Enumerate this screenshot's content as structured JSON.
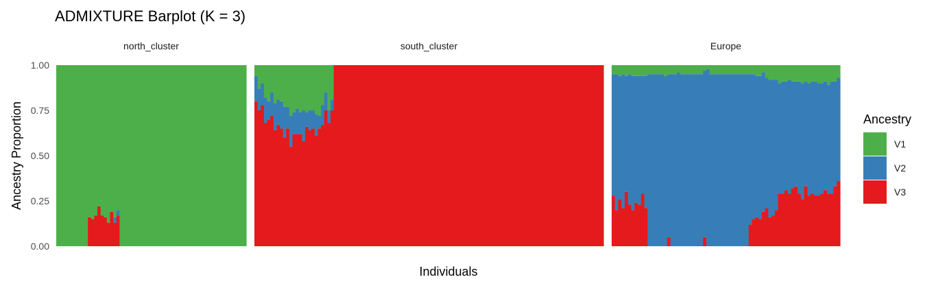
{
  "chart_data": {
    "type": "bar",
    "stacked": true,
    "title": "ADMIXTURE Barplot (K = 3)",
    "xlabel": "Individuals",
    "ylabel": "Ancestry Proportion",
    "ylim": [
      0,
      1
    ],
    "y_ticks": [
      "0.00",
      "0.25",
      "0.50",
      "0.75",
      "1.00"
    ],
    "legend": {
      "title": "Ancestry",
      "position": "right",
      "items": [
        {
          "name": "V1",
          "color": "#4DAF4A"
        },
        {
          "name": "V2",
          "color": "#377EB8"
        },
        {
          "name": "V3",
          "color": "#E41A1C"
        }
      ]
    },
    "series_order_top_to_bottom": [
      "V1",
      "V2",
      "V3"
    ],
    "facets": [
      {
        "name": "north_cluster",
        "individuals": 60,
        "V3": [
          0,
          0,
          0,
          0,
          0,
          0,
          0,
          0,
          0,
          0,
          0.16,
          0.15,
          0.17,
          0.22,
          0.17,
          0.16,
          0.13,
          0.19,
          0.13,
          0.17,
          0,
          0,
          0,
          0,
          0,
          0,
          0,
          0,
          0,
          0,
          0,
          0,
          0,
          0,
          0,
          0,
          0,
          0,
          0,
          0,
          0,
          0,
          0,
          0,
          0,
          0,
          0,
          0,
          0,
          0,
          0,
          0,
          0,
          0,
          0,
          0,
          0,
          0,
          0,
          0
        ],
        "V2": [
          0,
          0,
          0,
          0,
          0,
          0,
          0,
          0,
          0,
          0,
          0,
          0,
          0,
          0,
          0,
          0,
          0,
          0,
          0.03,
          0.03,
          0,
          0,
          0,
          0,
          0,
          0,
          0,
          0,
          0,
          0,
          0,
          0,
          0,
          0,
          0,
          0,
          0,
          0,
          0,
          0,
          0,
          0,
          0,
          0,
          0,
          0,
          0,
          0,
          0,
          0,
          0,
          0,
          0,
          0,
          0,
          0,
          0,
          0
        ]
      },
      {
        "name": "south_cluster",
        "individuals": 110,
        "V3": [
          0.8,
          0.75,
          0.78,
          0.68,
          0.7,
          0.72,
          0.64,
          0.67,
          0.65,
          0.6,
          0.65,
          0.55,
          0.62,
          0.62,
          0.62,
          0.58,
          0.66,
          0.64,
          0.65,
          0.61,
          0.65,
          0.67,
          0.75,
          0.68,
          0.75,
          1,
          1,
          1,
          1,
          1,
          1,
          1,
          1,
          1,
          1,
          1,
          1,
          1,
          1,
          1,
          1,
          1,
          1,
          1,
          1,
          1,
          1,
          1,
          1,
          1,
          1,
          1,
          1,
          1,
          1,
          1,
          1,
          1,
          1,
          1,
          1,
          1,
          1,
          1,
          1,
          1,
          1,
          1,
          1,
          1,
          1,
          1,
          1,
          1,
          1,
          1,
          1,
          1,
          1,
          1,
          1,
          1,
          1,
          1,
          1,
          1,
          1,
          1,
          1,
          1,
          1,
          1,
          1,
          1,
          1,
          1,
          1,
          1,
          1,
          1,
          1,
          1,
          1,
          1,
          1,
          1,
          1,
          1,
          1,
          1
        ],
        "V2": [
          0.14,
          0.12,
          0.12,
          0.14,
          0.1,
          0.13,
          0.15,
          0.14,
          0.15,
          0.17,
          0.12,
          0.17,
          0.12,
          0.14,
          0.12,
          0.17,
          0.08,
          0.11,
          0.1,
          0.12,
          0.07,
          0.11,
          0.1,
          0.07,
          0.06,
          0,
          0,
          0,
          0,
          0,
          0,
          0,
          0,
          0,
          0,
          0,
          0,
          0,
          0,
          0,
          0,
          0,
          0,
          0,
          0,
          0,
          0,
          0,
          0,
          0,
          0,
          0,
          0,
          0,
          0,
          0,
          0,
          0,
          0,
          0,
          0,
          0,
          0,
          0,
          0,
          0,
          0,
          0,
          0,
          0,
          0,
          0,
          0,
          0,
          0,
          0,
          0,
          0,
          0,
          0,
          0,
          0,
          0,
          0,
          0,
          0,
          0,
          0,
          0,
          0,
          0,
          0,
          0,
          0,
          0,
          0,
          0,
          0,
          0,
          0,
          0,
          0,
          0,
          0,
          0,
          0,
          0,
          0,
          0,
          0
        ]
      },
      {
        "name": "Europe",
        "individuals": 70,
        "V3": [
          0.28,
          0.2,
          0.26,
          0.21,
          0.3,
          0.23,
          0.2,
          0.24,
          0.23,
          0.29,
          0.21,
          0.0,
          0.0,
          0.0,
          0.0,
          0.0,
          0.0,
          0.05,
          0.0,
          0.0,
          0.0,
          0.0,
          0.0,
          0.0,
          0.0,
          0.0,
          0.0,
          0.0,
          0.05,
          0.0,
          0.0,
          0.0,
          0.0,
          0.0,
          0.0,
          0.0,
          0.0,
          0.0,
          0.0,
          0.0,
          0.0,
          0.0,
          0.12,
          0.15,
          0.16,
          0.15,
          0.19,
          0.21,
          0.16,
          0.17,
          0.2,
          0.29,
          0.29,
          0.31,
          0.29,
          0.32,
          0.33,
          0.29,
          0.26,
          0.33,
          0.28,
          0.29,
          0.28,
          0.28,
          0.29,
          0.31,
          0.29,
          0.29,
          0.33,
          0.36
        ],
        "V2": [
          0.67,
          0.75,
          0.68,
          0.74,
          0.64,
          0.72,
          0.74,
          0.7,
          0.71,
          0.65,
          0.73,
          0.95,
          0.95,
          0.95,
          0.95,
          0.95,
          0.94,
          0.9,
          0.95,
          0.95,
          0.96,
          0.95,
          0.95,
          0.95,
          0.95,
          0.95,
          0.95,
          0.95,
          0.92,
          0.98,
          0.95,
          0.95,
          0.95,
          0.95,
          0.95,
          0.95,
          0.95,
          0.95,
          0.95,
          0.95,
          0.95,
          0.95,
          0.83,
          0.8,
          0.78,
          0.79,
          0.77,
          0.72,
          0.76,
          0.75,
          0.72,
          0.61,
          0.62,
          0.6,
          0.63,
          0.59,
          0.58,
          0.62,
          0.64,
          0.58,
          0.62,
          0.62,
          0.63,
          0.62,
          0.61,
          0.6,
          0.6,
          0.62,
          0.58,
          0.57
        ]
      }
    ]
  }
}
